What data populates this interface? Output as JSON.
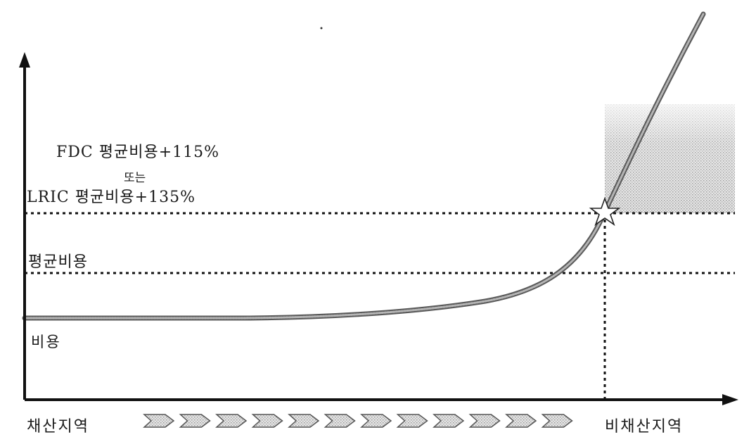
{
  "labels": {
    "fdc_threshold": "FDC 평균비용+115%",
    "or_word": "또는",
    "lric_threshold": "LRIC 평균비용+135%",
    "average_cost": "평균비용",
    "cost": "비용",
    "profitable_area": "채산지역",
    "unprofitable_area": "비채산지역"
  },
  "colors": {
    "axis": "#111111",
    "curve": "#7a7a7a",
    "shaded_region": "#c8c8c8",
    "arrow_fill": "#9a9a9a"
  },
  "markers": {
    "intersection": "star-icon",
    "transition_arrows": "chevron-arrow-icon"
  }
}
